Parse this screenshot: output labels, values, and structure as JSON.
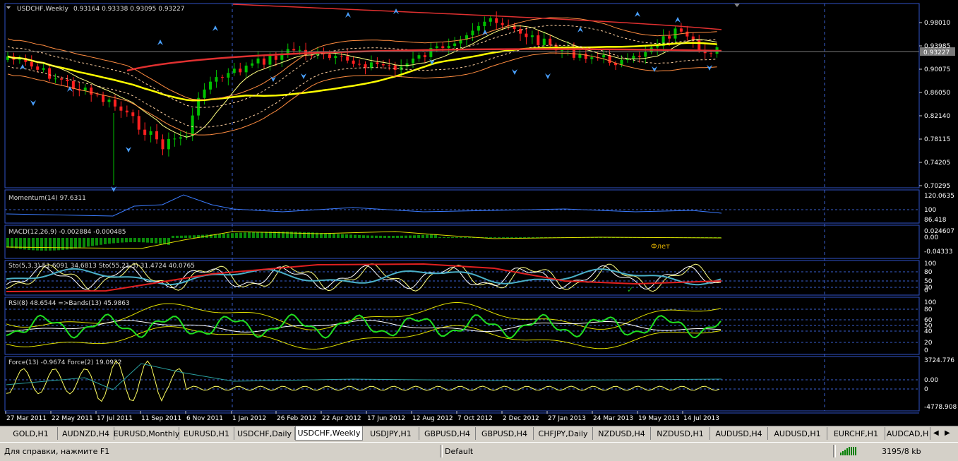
{
  "chart": {
    "symbol_header": "USDCHF,Weekly",
    "ohlc_values": "0.93164 0.93338 0.93095 0.93227",
    "current_price": "0.93227",
    "price_ticks": [
      "0.98010",
      "0.93985",
      "0.90075",
      "0.86050",
      "0.82140",
      "0.78115",
      "0.74205",
      "0.70295"
    ],
    "date_ticks": [
      "27 Mar 2011",
      "22 May 2011",
      "17 Jul 2011",
      "11 Sep 2011",
      "6 Nov 2011",
      "1 Jan 2012",
      "26 Feb 2012",
      "22 Apr 2012",
      "17 Jun 2012",
      "12 Aug 2012",
      "7 Oct 2012",
      "2 Dec 2012",
      "27 Jan 2013",
      "24 Mar 2013",
      "19 May 2013",
      "14 Jul 2013"
    ],
    "colors": {
      "background": "#000000",
      "frame": "#2f52c8",
      "bull": "#00c000",
      "bear": "#ff2020",
      "ma_yellow": "#ffff00",
      "ma_red": "#e03030",
      "envelope": "#ff8c40",
      "fractal": "#4aa0ff"
    }
  },
  "indicators": {
    "momentum": {
      "label": "Momentum(14) 97.6311",
      "ticks": [
        "120.0635",
        "100",
        "86.418"
      ]
    },
    "macd": {
      "label": "MACD(12,26,9) -0.002884 -0.000485",
      "ticks": [
        "0.024607",
        "0.00",
        "-0.04333"
      ],
      "annotation": "Флет"
    },
    "stochastic": {
      "label": "Sto(5,3,3) 51.6091 34.6813  Sto(55,21,3) 31.4724 40.0765",
      "ticks": [
        "100",
        "80",
        "50",
        "30",
        "0"
      ]
    },
    "rsi": {
      "label": "RSI(8) 48.6544  =>Bands(13) 45.9863",
      "ticks": [
        "100",
        "80",
        "60",
        "50",
        "40",
        "20",
        "0"
      ]
    },
    "force": {
      "label": "Force(13) -0.9674  Force(2) 19.0932",
      "ticks": [
        "3724.776",
        "0.00",
        "0",
        "-4778.908"
      ]
    }
  },
  "tabs": [
    "GOLD,H1",
    "AUDNZD,H4",
    "EURUSD,Monthly",
    "EURUSD,H1",
    "USDCHF,Daily",
    "USDCHF,Weekly",
    "USDJPY,H1",
    "GBPUSD,H4",
    "GBPUSD,H4",
    "CHFJPY,Daily",
    "NZDUSD,H4",
    "NZDUSD,H1",
    "AUDUSD,H4",
    "AUDUSD,H1",
    "EURCHF,H1",
    "AUDCAD,H"
  ],
  "active_tab": "USDCHF,Weekly",
  "status": {
    "help": "Для справки, нажмите F1",
    "profile": "Default",
    "traffic": "3195/8 kb"
  }
}
